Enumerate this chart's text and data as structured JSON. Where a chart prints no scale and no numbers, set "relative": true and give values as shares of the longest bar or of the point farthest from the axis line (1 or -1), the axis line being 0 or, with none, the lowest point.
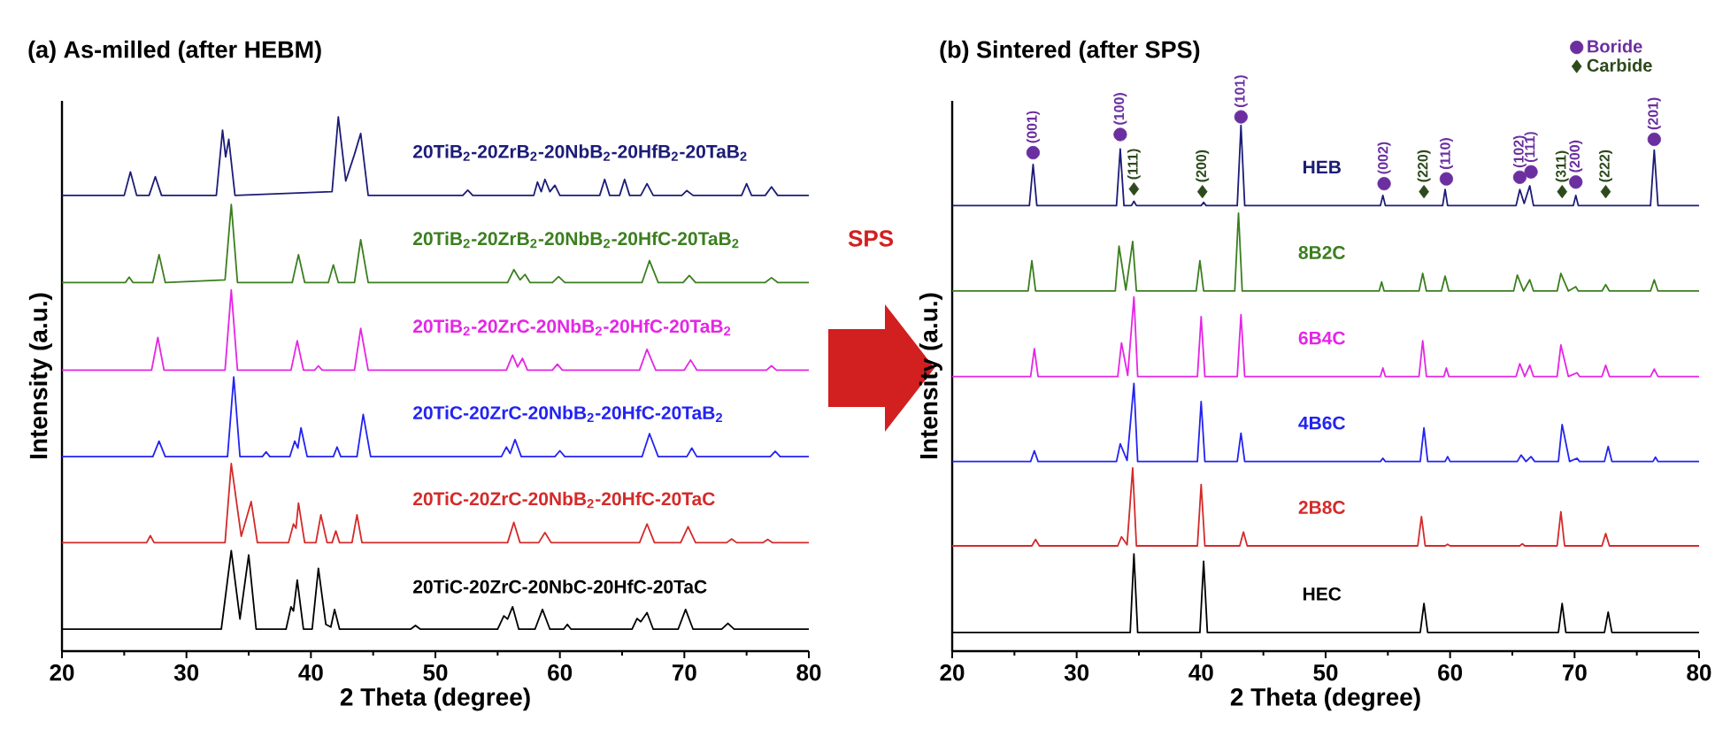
{
  "chart_data": [
    {
      "type": "line",
      "title": "(a) As-milled (after HEBM)",
      "xlabel": "2 Theta (degree)",
      "ylabel": "Intensity (a.u.)",
      "relative": true,
      "xlim": [
        20,
        80
      ],
      "xticks": [
        20,
        30,
        40,
        50,
        60,
        70,
        80
      ],
      "marker": "none",
      "line_style": "solid",
      "grid": false,
      "legend": false,
      "annotations": [
        "SPS"
      ],
      "series": [
        {
          "name": "20TiB$_{2}$-20ZrB$_{2}$-20NbB$_{2}$-20HfB$_{2}$-20TaB$_{2}$",
          "color": "#1c1c78",
          "x": [
            20,
            25.0,
            25.5,
            26.0,
            27.0,
            27.5,
            28.0,
            32.4,
            32.9,
            33.15,
            33.4,
            33.9,
            41.7,
            42.2,
            42.8,
            43.5,
            44.0,
            44.6,
            52.2,
            52.6,
            53.0,
            57.9,
            58.2,
            58.5,
            58.8,
            59.2,
            59.6,
            60.0,
            63.2,
            63.6,
            64.0,
            64.8,
            65.2,
            65.6,
            66.5,
            67.0,
            67.5,
            69.8,
            70.2,
            70.7,
            74.6,
            75.0,
            75.4,
            76.5,
            77.0,
            77.5,
            80
          ],
          "values": [
            0.853,
            0.853,
            0.897,
            0.853,
            0.853,
            0.888,
            0.853,
            0.853,
            0.975,
            0.925,
            0.958,
            0.853,
            0.86,
            1.0,
            0.88,
            0.93,
            0.969,
            0.853,
            0.853,
            0.863,
            0.853,
            0.853,
            0.878,
            0.86,
            0.883,
            0.86,
            0.872,
            0.853,
            0.853,
            0.883,
            0.853,
            0.853,
            0.883,
            0.853,
            0.853,
            0.875,
            0.853,
            0.853,
            0.862,
            0.853,
            0.853,
            0.875,
            0.853,
            0.853,
            0.869,
            0.853,
            0.853
          ]
        },
        {
          "name": "20TiB$_{2}$-20ZrB$_{2}$-20NbB$_{2}$-20HfC-20TaB$_{2}$",
          "color": "#3b7f1f",
          "x": [
            20,
            25.1,
            25.4,
            25.7,
            27.3,
            27.8,
            28.3,
            33.1,
            33.6,
            34.1,
            38.5,
            39.0,
            39.5,
            41.4,
            41.8,
            42.2,
            43.5,
            44.0,
            44.6,
            55.8,
            56.3,
            56.8,
            57.2,
            57.6,
            59.4,
            59.9,
            60.4,
            66.6,
            67.2,
            67.9,
            69.9,
            70.4,
            70.9,
            76.5,
            77.0,
            77.5,
            80
          ],
          "values": [
            0.69,
            0.69,
            0.7,
            0.69,
            0.69,
            0.742,
            0.69,
            0.695,
            0.836,
            0.69,
            0.69,
            0.742,
            0.69,
            0.69,
            0.723,
            0.69,
            0.69,
            0.77,
            0.69,
            0.69,
            0.714,
            0.695,
            0.705,
            0.69,
            0.69,
            0.701,
            0.69,
            0.69,
            0.731,
            0.69,
            0.69,
            0.703,
            0.69,
            0.69,
            0.699,
            0.69,
            0.69
          ]
        },
        {
          "name": "20TiB$_{2}$-20ZrC-20NbB$_{2}$-20HfC-20TaB$_{2}$",
          "color": "#e526e5",
          "x": [
            20,
            27.2,
            27.7,
            28.2,
            33.1,
            33.6,
            34.1,
            38.4,
            38.9,
            39.4,
            40.3,
            40.6,
            40.9,
            43.5,
            44.0,
            44.6,
            55.7,
            56.2,
            56.6,
            57.0,
            57.4,
            59.4,
            59.8,
            60.2,
            66.4,
            67.0,
            67.7,
            70.0,
            70.5,
            71.0,
            76.6,
            77.0,
            77.4,
            80
          ],
          "values": [
            0.526,
            0.526,
            0.587,
            0.526,
            0.526,
            0.676,
            0.526,
            0.526,
            0.581,
            0.526,
            0.526,
            0.534,
            0.526,
            0.526,
            0.604,
            0.526,
            0.526,
            0.554,
            0.532,
            0.548,
            0.526,
            0.526,
            0.537,
            0.526,
            0.526,
            0.565,
            0.526,
            0.526,
            0.545,
            0.526,
            0.526,
            0.534,
            0.526,
            0.526
          ]
        },
        {
          "name": "20TiC-20ZrC-20NbB$_{2}$-20HfC-20TaB$_{2}$",
          "color": "#2323f2",
          "x": [
            20,
            27.3,
            27.8,
            28.3,
            33.3,
            33.8,
            34.3,
            36.1,
            36.4,
            36.7,
            38.3,
            38.7,
            38.95,
            39.2,
            39.7,
            41.8,
            42.1,
            42.4,
            43.7,
            44.2,
            44.8,
            55.3,
            55.7,
            56.0,
            56.4,
            56.9,
            59.6,
            60.0,
            60.4,
            66.6,
            67.2,
            67.9,
            70.2,
            70.6,
            71.0,
            76.9,
            77.3,
            77.7,
            80
          ],
          "values": [
            0.364,
            0.364,
            0.393,
            0.364,
            0.364,
            0.513,
            0.364,
            0.364,
            0.373,
            0.364,
            0.364,
            0.393,
            0.38,
            0.418,
            0.364,
            0.364,
            0.382,
            0.364,
            0.364,
            0.443,
            0.364,
            0.364,
            0.382,
            0.37,
            0.396,
            0.364,
            0.364,
            0.375,
            0.364,
            0.364,
            0.407,
            0.364,
            0.364,
            0.38,
            0.364,
            0.364,
            0.374,
            0.364,
            0.364
          ]
        },
        {
          "name": "20TiC-20ZrC-20NbB$_{2}$-20HfC-20TaC",
          "color": "#d42a2a",
          "x": [
            20,
            26.8,
            27.1,
            27.4,
            33.1,
            33.6,
            34.4,
            35.2,
            35.7,
            38.2,
            38.6,
            38.8,
            39.0,
            39.5,
            40.4,
            40.8,
            41.3,
            41.7,
            42.0,
            42.3,
            43.3,
            43.7,
            44.1,
            55.8,
            56.3,
            56.8,
            58.3,
            58.8,
            59.3,
            66.4,
            67.0,
            67.6,
            69.7,
            70.3,
            70.9,
            73.4,
            73.8,
            74.2,
            76.3,
            76.7,
            77.1,
            80
          ],
          "values": [
            0.203,
            0.203,
            0.216,
            0.203,
            0.203,
            0.351,
            0.215,
            0.28,
            0.203,
            0.203,
            0.238,
            0.23,
            0.277,
            0.203,
            0.203,
            0.255,
            0.203,
            0.203,
            0.225,
            0.203,
            0.203,
            0.255,
            0.203,
            0.203,
            0.241,
            0.203,
            0.203,
            0.222,
            0.203,
            0.203,
            0.238,
            0.203,
            0.203,
            0.233,
            0.203,
            0.203,
            0.21,
            0.203,
            0.203,
            0.209,
            0.203,
            0.203
          ]
        },
        {
          "name": "20TiC-20ZrC-20NbC-20HfC-20TaC",
          "color": "#000000",
          "x": [
            20,
            32.8,
            33.6,
            34.3,
            35.0,
            35.6,
            38.0,
            38.4,
            38.6,
            38.9,
            39.4,
            40.1,
            40.6,
            41.2,
            41.6,
            41.9,
            42.3,
            48.0,
            48.4,
            48.8,
            55.0,
            55.5,
            55.8,
            56.2,
            56.7,
            58.0,
            58.6,
            59.2,
            60.3,
            60.6,
            60.9,
            65.8,
            66.2,
            66.5,
            67.0,
            67.5,
            69.5,
            70.1,
            70.7,
            73.0,
            73.5,
            74.0,
            80
          ],
          "values": [
            0.041,
            0.041,
            0.188,
            0.06,
            0.18,
            0.041,
            0.041,
            0.083,
            0.075,
            0.133,
            0.041,
            0.041,
            0.155,
            0.05,
            0.045,
            0.078,
            0.041,
            0.041,
            0.048,
            0.041,
            0.041,
            0.066,
            0.06,
            0.083,
            0.041,
            0.041,
            0.078,
            0.041,
            0.041,
            0.05,
            0.041,
            0.041,
            0.061,
            0.055,
            0.072,
            0.041,
            0.041,
            0.078,
            0.041,
            0.041,
            0.052,
            0.041,
            0.041
          ]
        }
      ]
    },
    {
      "type": "line",
      "title": "(b) Sintered (after SPS)",
      "xlabel": "2 Theta (degree)",
      "ylabel": "Intensity (a.u.)",
      "relative": true,
      "xlim": [
        20,
        80
      ],
      "xticks": [
        20,
        30,
        40,
        50,
        60,
        70,
        80
      ],
      "marker": "none",
      "line_style": "solid",
      "grid": false,
      "legend": "top right",
      "annotations": [
        {
          "text": "(001)",
          "x": 26.5,
          "y": 0.933
        },
        {
          "text": "(100)",
          "x": 33.5,
          "y": 0.967
        },
        {
          "text": "(101)",
          "x": 43.2,
          "y": 1.0
        },
        {
          "text": "(002)",
          "x": 54.7,
          "y": 0.875
        },
        {
          "text": "(110)",
          "x": 59.7,
          "y": 0.884
        },
        {
          "text": "(102)",
          "x": 65.6,
          "y": 0.887
        },
        {
          "text": "(111)",
          "x": 66.5,
          "y": 0.897
        },
        {
          "text": "(200)",
          "x": 70.1,
          "y": 0.878
        },
        {
          "text": "(201)",
          "x": 76.4,
          "y": 0.958
        },
        {
          "text": "(111)",
          "x": 34.6,
          "y": 0.865
        },
        {
          "text": "(200)",
          "x": 40.1,
          "y": 0.86
        },
        {
          "text": "(220)",
          "x": 57.9,
          "y": 0.86
        },
        {
          "text": "(311)",
          "x": 69.0,
          "y": 0.86
        },
        {
          "text": "(222)",
          "x": 72.5,
          "y": 0.86
        }
      ],
      "series": [
        {
          "name": "HEB",
          "color": "#1c1c78",
          "x": [
            20,
            26.2,
            26.5,
            26.8,
            33.2,
            33.5,
            33.8,
            34.4,
            34.6,
            34.8,
            40.0,
            40.2,
            40.4,
            42.9,
            43.2,
            43.5,
            54.4,
            54.6,
            54.8,
            59.4,
            59.6,
            59.8,
            65.3,
            65.6,
            65.95,
            66.4,
            66.7,
            69.9,
            70.1,
            70.3,
            76.1,
            76.4,
            76.7,
            80
          ],
          "values": [
            0.834,
            0.834,
            0.911,
            0.834,
            0.834,
            0.94,
            0.834,
            0.834,
            0.842,
            0.834,
            0.834,
            0.84,
            0.834,
            0.834,
            0.984,
            0.834,
            0.834,
            0.853,
            0.834,
            0.834,
            0.864,
            0.834,
            0.834,
            0.864,
            0.838,
            0.871,
            0.834,
            0.834,
            0.853,
            0.834,
            0.834,
            0.938,
            0.834,
            0.834
          ]
        },
        {
          "name": "8B2C",
          "color": "#3b7f1f",
          "x": [
            20,
            26.1,
            26.4,
            26.7,
            33.1,
            33.4,
            33.95,
            34.5,
            34.8,
            39.6,
            39.9,
            40.2,
            42.7,
            43.0,
            43.3,
            54.3,
            54.5,
            54.7,
            57.5,
            57.8,
            58.1,
            59.3,
            59.6,
            59.9,
            65.1,
            65.4,
            65.9,
            66.4,
            66.7,
            68.6,
            68.9,
            69.5,
            70.1,
            70.3,
            72.2,
            72.5,
            72.8,
            76.1,
            76.4,
            76.7,
            80
          ],
          "values": [
            0.674,
            0.674,
            0.731,
            0.674,
            0.674,
            0.758,
            0.676,
            0.767,
            0.674,
            0.674,
            0.731,
            0.674,
            0.674,
            0.82,
            0.674,
            0.674,
            0.691,
            0.674,
            0.674,
            0.707,
            0.674,
            0.674,
            0.702,
            0.674,
            0.674,
            0.704,
            0.674,
            0.695,
            0.674,
            0.674,
            0.707,
            0.674,
            0.682,
            0.674,
            0.674,
            0.686,
            0.674,
            0.674,
            0.695,
            0.674,
            0.674
          ]
        },
        {
          "name": "6B4C",
          "color": "#e526e5",
          "x": [
            20,
            26.3,
            26.6,
            26.9,
            33.3,
            33.6,
            34.1,
            34.6,
            34.9,
            39.7,
            40.0,
            40.3,
            42.9,
            43.2,
            43.5,
            54.4,
            54.6,
            54.8,
            57.5,
            57.8,
            58.1,
            59.5,
            59.7,
            59.9,
            65.3,
            65.6,
            66.0,
            66.4,
            66.7,
            68.6,
            68.9,
            69.5,
            70.2,
            70.4,
            72.2,
            72.5,
            72.8,
            76.1,
            76.4,
            76.7,
            80
          ],
          "values": [
            0.514,
            0.514,
            0.566,
            0.514,
            0.514,
            0.577,
            0.516,
            0.663,
            0.514,
            0.514,
            0.626,
            0.514,
            0.514,
            0.63,
            0.514,
            0.514,
            0.53,
            0.514,
            0.514,
            0.581,
            0.514,
            0.514,
            0.53,
            0.514,
            0.514,
            0.538,
            0.514,
            0.535,
            0.514,
            0.514,
            0.573,
            0.514,
            0.521,
            0.514,
            0.514,
            0.535,
            0.514,
            0.514,
            0.528,
            0.514,
            0.514
          ]
        },
        {
          "name": "4B6C",
          "color": "#2323f2",
          "x": [
            20,
            26.3,
            26.6,
            26.9,
            33.2,
            33.5,
            34.05,
            34.6,
            34.9,
            39.7,
            40.0,
            40.3,
            42.9,
            43.2,
            43.5,
            54.4,
            54.6,
            54.8,
            57.6,
            57.9,
            58.2,
            59.6,
            59.8,
            60.0,
            65.4,
            65.7,
            66.1,
            66.5,
            66.8,
            68.7,
            69.0,
            69.6,
            70.2,
            70.4,
            72.4,
            72.7,
            73.0,
            76.3,
            76.5,
            76.7,
            80
          ],
          "values": [
            0.355,
            0.355,
            0.375,
            0.355,
            0.355,
            0.388,
            0.357,
            0.501,
            0.355,
            0.355,
            0.467,
            0.355,
            0.355,
            0.408,
            0.355,
            0.355,
            0.361,
            0.355,
            0.355,
            0.418,
            0.355,
            0.355,
            0.364,
            0.355,
            0.355,
            0.367,
            0.355,
            0.364,
            0.355,
            0.355,
            0.424,
            0.355,
            0.361,
            0.355,
            0.355,
            0.383,
            0.355,
            0.355,
            0.363,
            0.355,
            0.355
          ]
        },
        {
          "name": "2B8C",
          "color": "#d42a2a",
          "x": [
            20,
            26.4,
            26.7,
            27.0,
            33.3,
            33.6,
            34.05,
            34.5,
            34.8,
            39.7,
            40.0,
            40.3,
            43.1,
            43.4,
            43.7,
            57.4,
            57.7,
            58.0,
            59.6,
            59.8,
            60.0,
            65.6,
            65.8,
            66.0,
            68.6,
            68.9,
            69.2,
            72.2,
            72.5,
            72.8,
            80
          ],
          "values": [
            0.197,
            0.197,
            0.209,
            0.197,
            0.197,
            0.214,
            0.199,
            0.343,
            0.197,
            0.197,
            0.312,
            0.197,
            0.197,
            0.223,
            0.197,
            0.197,
            0.252,
            0.197,
            0.197,
            0.2,
            0.197,
            0.197,
            0.201,
            0.197,
            0.197,
            0.261,
            0.197,
            0.197,
            0.22,
            0.197,
            0.197
          ]
        },
        {
          "name": "HEC",
          "color": "#000000",
          "x": [
            20,
            34.3,
            34.6,
            34.9,
            39.9,
            40.2,
            40.5,
            57.6,
            57.9,
            58.2,
            68.7,
            69.0,
            69.3,
            72.4,
            72.7,
            73.0,
            80
          ],
          "values": [
            0.035,
            0.035,
            0.182,
            0.035,
            0.035,
            0.168,
            0.035,
            0.035,
            0.089,
            0.035,
            0.035,
            0.089,
            0.035,
            0.035,
            0.073,
            0.035,
            0.035
          ]
        },
        {
          "name": "Boride",
          "type": "scatter",
          "marker": "circle",
          "color": "#6b2fa0",
          "x": [
            26.5,
            33.5,
            43.2,
            54.7,
            59.7,
            65.6,
            66.5,
            70.1,
            76.4
          ],
          "values": [
            0.933,
            0.967,
            1.0,
            0.875,
            0.884,
            0.887,
            0.897,
            0.878,
            0.958
          ]
        },
        {
          "name": "Carbide",
          "type": "scatter",
          "marker": "diamond",
          "color": "#2d4a1c",
          "x": [
            34.6,
            40.1,
            57.9,
            69.0,
            72.5
          ],
          "values": [
            0.865,
            0.86,
            0.86,
            0.86,
            0.86
          ]
        }
      ]
    }
  ]
}
